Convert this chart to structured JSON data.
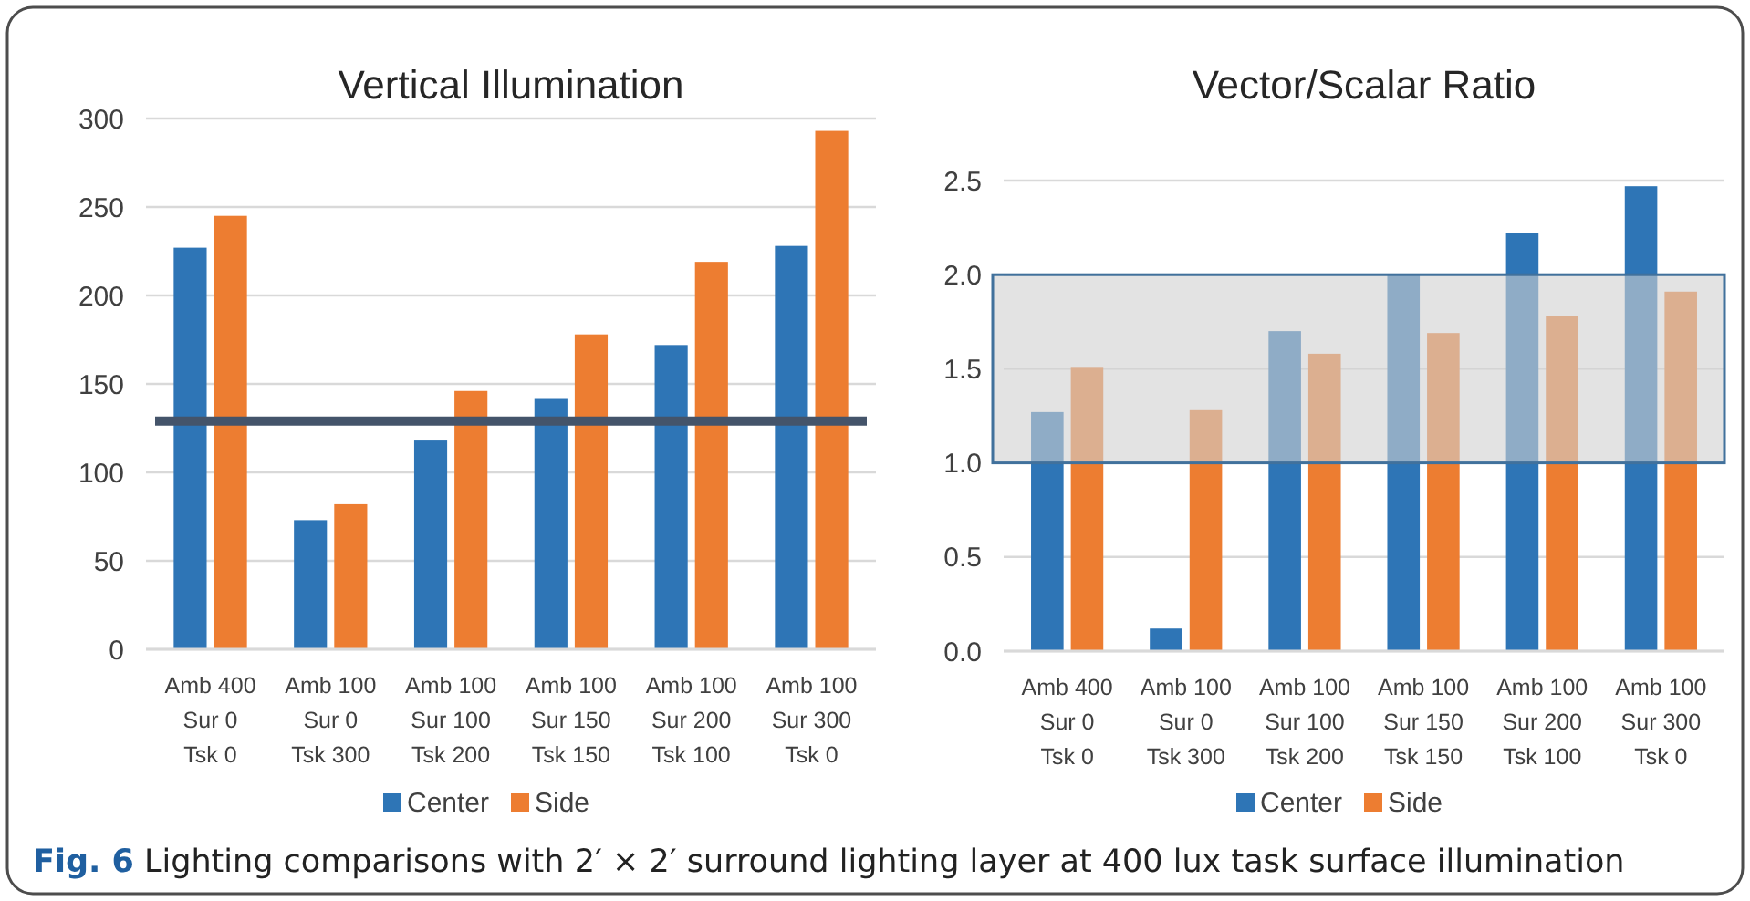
{
  "chart_data": [
    {
      "type": "bar",
      "title": "Vertical Illumination",
      "categories": [
        "Amb 400\nSur 0\nTsk 0",
        "Amb 100\nSur 0\nTsk 300",
        "Amb 100\nSur 100\nTsk 200",
        "Amb 100\nSur 150\nTsk 150",
        "Amb 100\nSur 200\nTsk 100",
        "Amb 100\nSur 300\nTsk 0"
      ],
      "series": [
        {
          "name": "Center",
          "color": "#2e75b6",
          "values": [
            227,
            73,
            118,
            142,
            172,
            228
          ]
        },
        {
          "name": "Side",
          "color": "#ed7d31",
          "values": [
            245,
            82,
            146,
            178,
            219,
            293
          ]
        }
      ],
      "ylim": [
        0,
        300
      ],
      "yticks": [
        0,
        50,
        100,
        150,
        200,
        250,
        300
      ],
      "grid": "y",
      "legend": "bottom",
      "ref_lines": [
        {
          "axis": "y",
          "value": 129,
          "color": "#44546a"
        }
      ],
      "annotations": [
        "Fig. 6",
        "Lighting comparisons with 2′ × 2′ surround lighting layer at 400 lux task surface illumination"
      ]
    },
    {
      "type": "bar",
      "title": "Vector/Scalar Ratio",
      "categories": [
        "Amb 400\nSur 0\nTsk 0",
        "Amb 100\nSur 0\nTsk 300",
        "Amb 100\nSur 100\nTsk 200",
        "Amb 100\nSur 150\nTsk 150",
        "Amb 100\nSur 200\nTsk 100",
        "Amb 100\nSur 300\nTsk 0"
      ],
      "series": [
        {
          "name": "Center",
          "color": "#2e75b6",
          "values": [
            1.27,
            0.12,
            1.7,
            2.0,
            2.22,
            2.47
          ]
        },
        {
          "name": "Side",
          "color": "#ed7d31",
          "values": [
            1.51,
            1.28,
            1.58,
            1.69,
            1.78,
            1.91
          ]
        }
      ],
      "ylim": [
        0,
        2.5
      ],
      "yticks": [
        {
          "value": 0,
          "label": "0.0"
        },
        {
          "value": 0.5,
          "label": "0.5"
        },
        {
          "value": 1,
          "label": "1.0"
        },
        {
          "value": 1.5,
          "label": "1.5"
        },
        {
          "value": 2,
          "label": "2.0"
        },
        {
          "value": 2.5,
          "label": "2.5"
        }
      ],
      "grid": "y",
      "legend": "bottom",
      "bands": [
        {
          "axis": "y",
          "from": 1,
          "to": 2,
          "color": "#d0d0d0"
        }
      ]
    }
  ]
}
